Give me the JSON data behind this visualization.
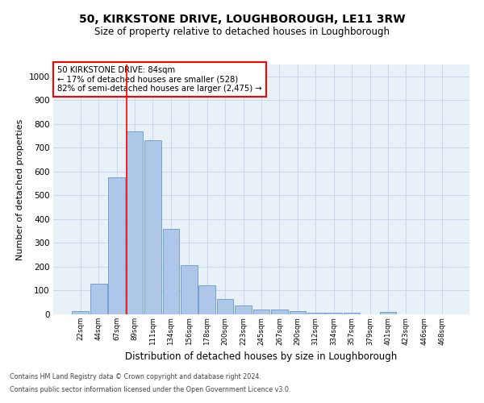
{
  "title": "50, KIRKSTONE DRIVE, LOUGHBOROUGH, LE11 3RW",
  "subtitle": "Size of property relative to detached houses in Loughborough",
  "xlabel": "Distribution of detached houses by size in Loughborough",
  "ylabel": "Number of detached properties",
  "footnote1": "Contains HM Land Registry data © Crown copyright and database right 2024.",
  "footnote2": "Contains public sector information licensed under the Open Government Licence v3.0.",
  "bar_labels": [
    "22sqm",
    "44sqm",
    "67sqm",
    "89sqm",
    "111sqm",
    "134sqm",
    "156sqm",
    "178sqm",
    "200sqm",
    "223sqm",
    "245sqm",
    "267sqm",
    "290sqm",
    "312sqm",
    "334sqm",
    "357sqm",
    "379sqm",
    "401sqm",
    "423sqm",
    "446sqm",
    "468sqm"
  ],
  "bar_values": [
    13,
    128,
    575,
    770,
    730,
    360,
    208,
    122,
    63,
    38,
    20,
    20,
    13,
    8,
    8,
    8,
    0,
    10,
    0,
    0,
    0
  ],
  "bar_color": "#aec6e8",
  "bar_edge_color": "#6699cc",
  "grid_color": "#c8d8ea",
  "vline_color": "red",
  "annotation_text": "50 KIRKSTONE DRIVE: 84sqm\n← 17% of detached houses are smaller (528)\n82% of semi-detached houses are larger (2,475) →",
  "annotation_box_edgecolor": "red",
  "annotation_box_facecolor": "white",
  "ylim": [
    0,
    1050
  ],
  "yticks": [
    0,
    100,
    200,
    300,
    400,
    500,
    600,
    700,
    800,
    900,
    1000
  ],
  "bg_color": "#e8f0f8",
  "title_fontsize": 10,
  "subtitle_fontsize": 8.5,
  "ylabel_fontsize": 8,
  "xlabel_fontsize": 8.5
}
